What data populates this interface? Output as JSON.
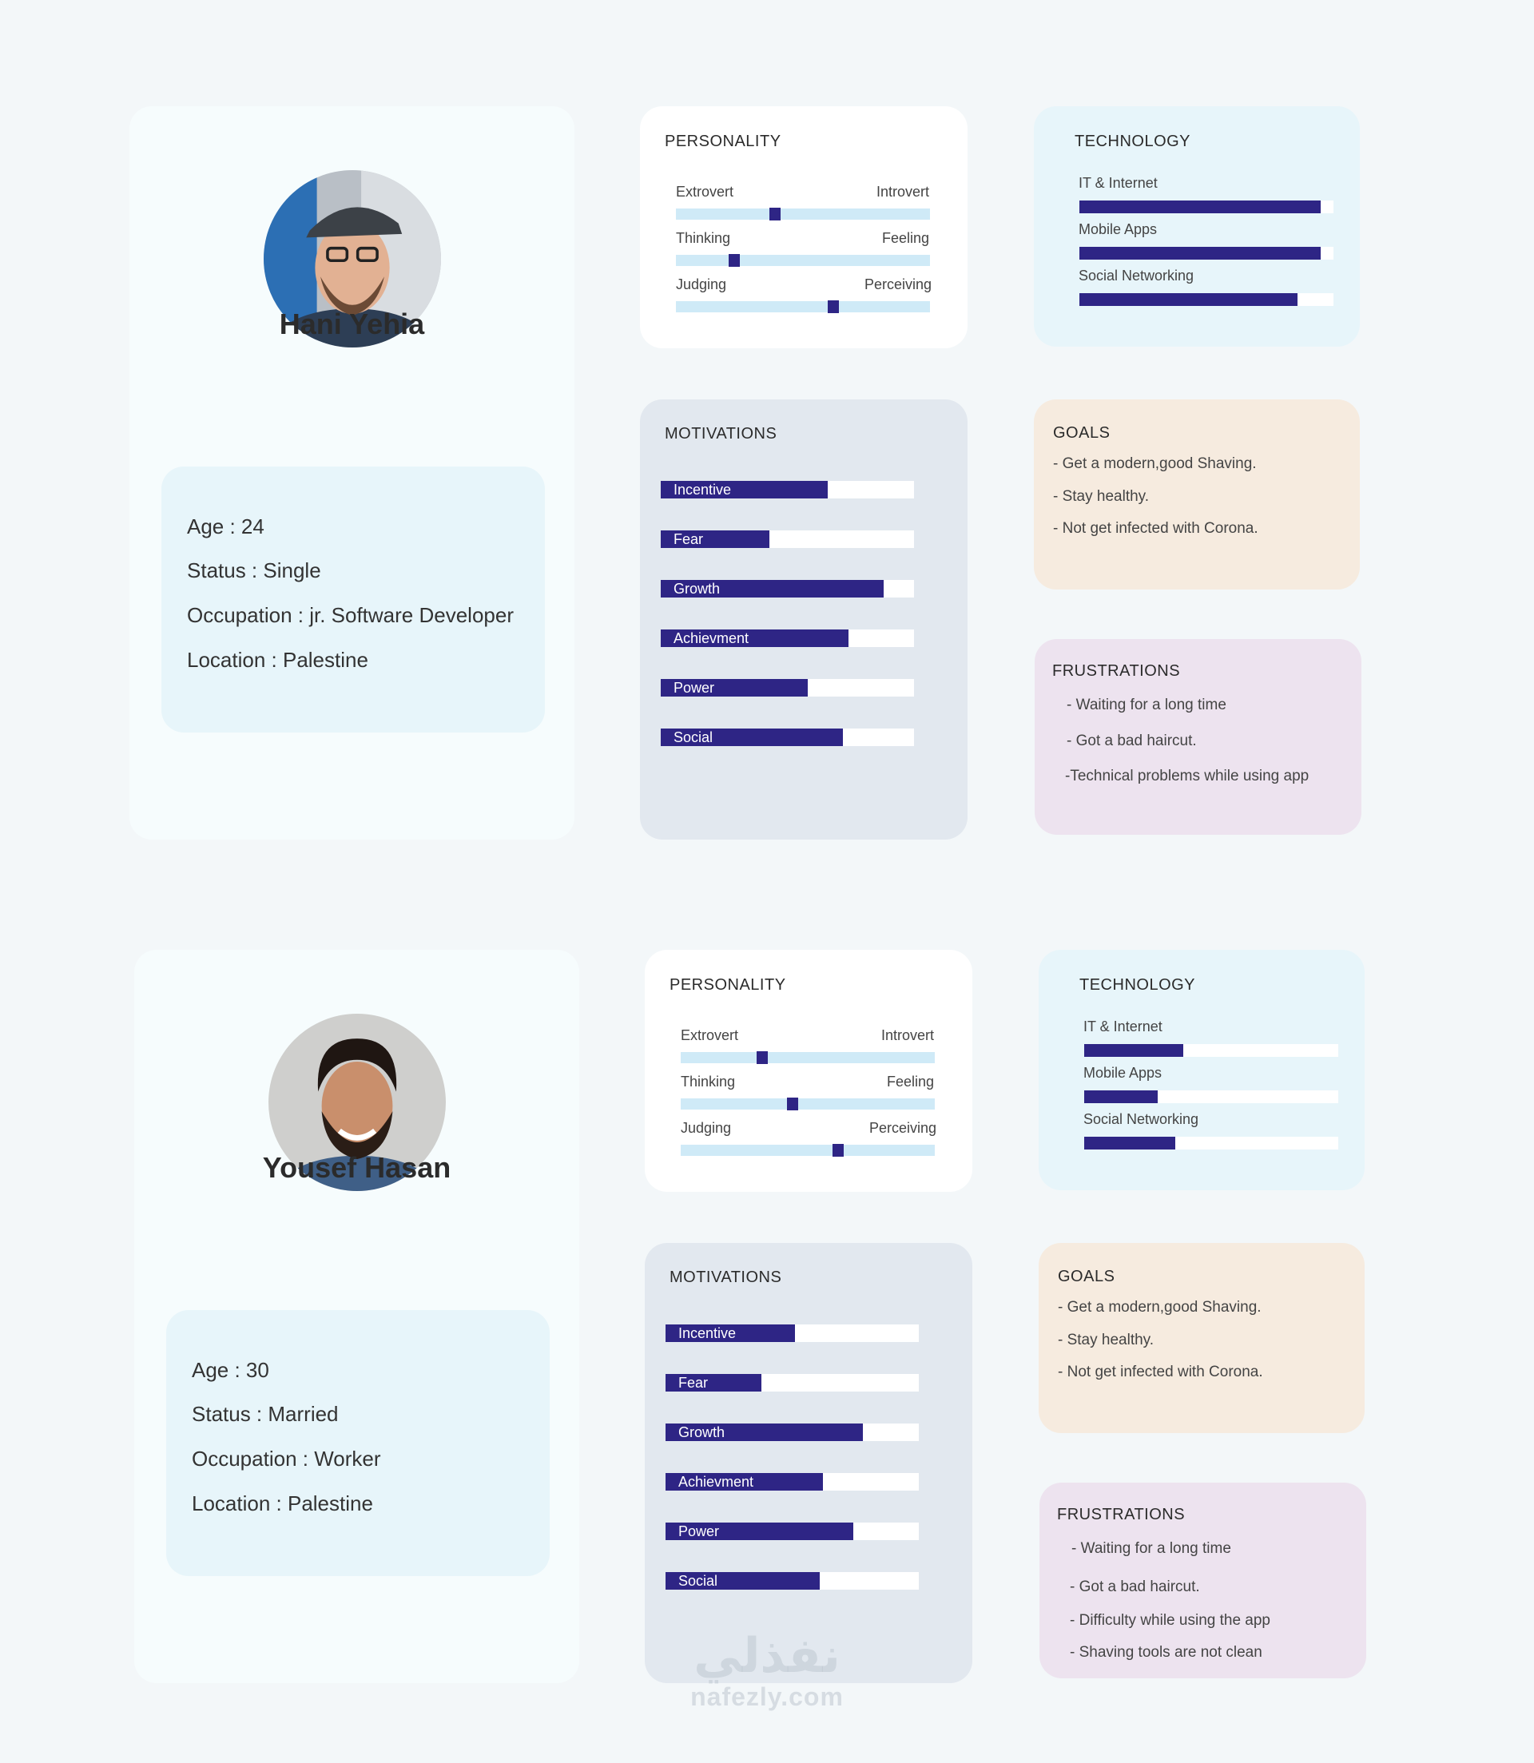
{
  "personas": [
    {
      "name": "Hani Yehia",
      "info": [
        "Age : 24",
        "Status : Single",
        "Occupation : jr. Software Developer",
        "Location : Palestine"
      ],
      "personality": {
        "title": "PERSONALITY",
        "scales": [
          {
            "left": "Extrovert",
            "right": "Introvert",
            "position": 0.39
          },
          {
            "left": "Thinking",
            "right": "Feeling",
            "position": 0.23
          },
          {
            "left": "Judging",
            "right": "Perceiving",
            "position": 0.62
          }
        ]
      },
      "technology": {
        "title": "TECHNOLOGY",
        "items": [
          {
            "label": "IT & Internet",
            "level": 0.95
          },
          {
            "label": "Mobile Apps",
            "level": 0.95
          },
          {
            "label": "Social Networking",
            "level": 0.86
          }
        ]
      },
      "motivations": {
        "title": "MOTIVATIONS",
        "items": [
          {
            "label": "Incentive",
            "level": 0.66
          },
          {
            "label": "Fear",
            "level": 0.43
          },
          {
            "label": "Growth",
            "level": 0.88
          },
          {
            "label": "Achievment",
            "level": 0.74
          },
          {
            "label": "Power",
            "level": 0.58
          },
          {
            "label": "Social",
            "level": 0.72
          }
        ]
      },
      "goals": {
        "title": "GOALS",
        "items": [
          "- Get a modern,good Shaving.",
          "- Stay healthy.",
          "- Not get infected with Corona."
        ]
      },
      "frustrations": {
        "title": "FRUSTRATIONS",
        "items": [
          "- Waiting for a long time",
          "- Got a bad haircut.",
          "-Technical problems while using app"
        ]
      }
    },
    {
      "name": "Yousef Hasan",
      "info": [
        "Age : 30",
        "Status : Married",
        "Occupation : Worker",
        "Location : Palestine"
      ],
      "personality": {
        "title": "PERSONALITY",
        "scales": [
          {
            "left": "Extrovert",
            "right": "Introvert",
            "position": 0.32
          },
          {
            "left": "Thinking",
            "right": "Feeling",
            "position": 0.44
          },
          {
            "left": "Judging",
            "right": "Perceiving",
            "position": 0.62
          }
        ]
      },
      "technology": {
        "title": "TECHNOLOGY",
        "items": [
          {
            "label": "IT & Internet",
            "level": 0.39
          },
          {
            "label": "Mobile Apps",
            "level": 0.29
          },
          {
            "label": "Social Networking",
            "level": 0.36
          }
        ]
      },
      "motivations": {
        "title": "MOTIVATIONS",
        "items": [
          {
            "label": "Incentive",
            "level": 0.51
          },
          {
            "label": "Fear",
            "level": 0.38
          },
          {
            "label": "Growth",
            "level": 0.78
          },
          {
            "label": "Achievment",
            "level": 0.62
          },
          {
            "label": "Power",
            "level": 0.74
          },
          {
            "label": "Social",
            "level": 0.61
          }
        ]
      },
      "goals": {
        "title": "GOALS",
        "items": [
          "- Get a modern,good Shaving.",
          "- Stay healthy.",
          "- Not get infected with Corona."
        ]
      },
      "frustrations": {
        "title": "FRUSTRATIONS",
        "items": [
          "- Waiting for a long time",
          "- Got a bad haircut.",
          "- Difficulty while using the app",
          "- Shaving tools are not clean"
        ]
      }
    }
  ],
  "watermark": {
    "arabic": "نفذلي",
    "latin": "nafezly.com"
  },
  "colors": {
    "accent": "#2e2585",
    "track_light": "#cfeaf7"
  }
}
